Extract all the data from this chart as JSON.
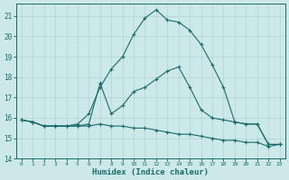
{
  "title": "",
  "xlabel": "Humidex (Indice chaleur)",
  "ylabel": "",
  "bg_color": "#cce8e8",
  "line_color": "#1a6b6b",
  "xlim": [
    -0.5,
    23.5
  ],
  "ylim": [
    14,
    21.6
  ],
  "yticks": [
    14,
    15,
    16,
    17,
    18,
    19,
    20,
    21
  ],
  "xticks": [
    0,
    1,
    2,
    3,
    4,
    5,
    6,
    7,
    8,
    9,
    10,
    11,
    12,
    13,
    14,
    15,
    16,
    17,
    18,
    19,
    20,
    21,
    22,
    23
  ],
  "xtick_labels": [
    "0",
    "1",
    "2",
    "3",
    "4",
    "5",
    "6",
    "7",
    "8",
    "9",
    "10",
    "11",
    "12",
    "13",
    "14",
    "15",
    "16",
    "17",
    "18",
    "19",
    "20",
    "21",
    "22",
    "23"
  ],
  "series1_x": [
    0,
    1,
    2,
    3,
    4,
    5,
    6,
    7,
    8,
    9,
    10,
    11,
    12,
    13,
    14,
    15,
    16,
    17,
    18,
    19,
    20,
    21,
    22,
    23
  ],
  "series1_y": [
    15.9,
    15.8,
    15.6,
    15.6,
    15.6,
    15.7,
    16.2,
    17.5,
    18.4,
    19.0,
    20.1,
    20.9,
    21.3,
    20.8,
    20.7,
    20.3,
    19.6,
    18.6,
    17.5,
    15.8,
    15.7,
    15.7,
    14.7,
    14.7
  ],
  "series2_x": [
    0,
    1,
    2,
    3,
    4,
    5,
    6,
    7,
    8,
    9,
    10,
    11,
    12,
    13,
    14,
    15,
    16,
    17,
    18,
    19,
    20,
    21,
    22,
    23
  ],
  "series2_y": [
    15.9,
    15.8,
    15.6,
    15.6,
    15.6,
    15.6,
    15.6,
    15.7,
    15.6,
    15.6,
    15.5,
    15.5,
    15.4,
    15.3,
    15.2,
    15.2,
    15.1,
    15.0,
    14.9,
    14.9,
    14.8,
    14.8,
    14.6,
    14.7
  ],
  "series3_x": [
    0,
    1,
    2,
    3,
    4,
    5,
    6,
    7,
    8,
    9,
    10,
    11,
    12,
    13,
    14,
    15,
    16,
    17,
    18,
    19,
    20,
    21,
    22,
    23
  ],
  "series3_y": [
    15.9,
    15.8,
    15.6,
    15.6,
    15.6,
    15.6,
    15.7,
    17.7,
    16.2,
    16.6,
    17.3,
    17.5,
    17.9,
    18.3,
    18.5,
    17.5,
    16.4,
    16.0,
    15.9,
    15.8,
    15.7,
    15.7,
    14.7,
    14.7
  ]
}
